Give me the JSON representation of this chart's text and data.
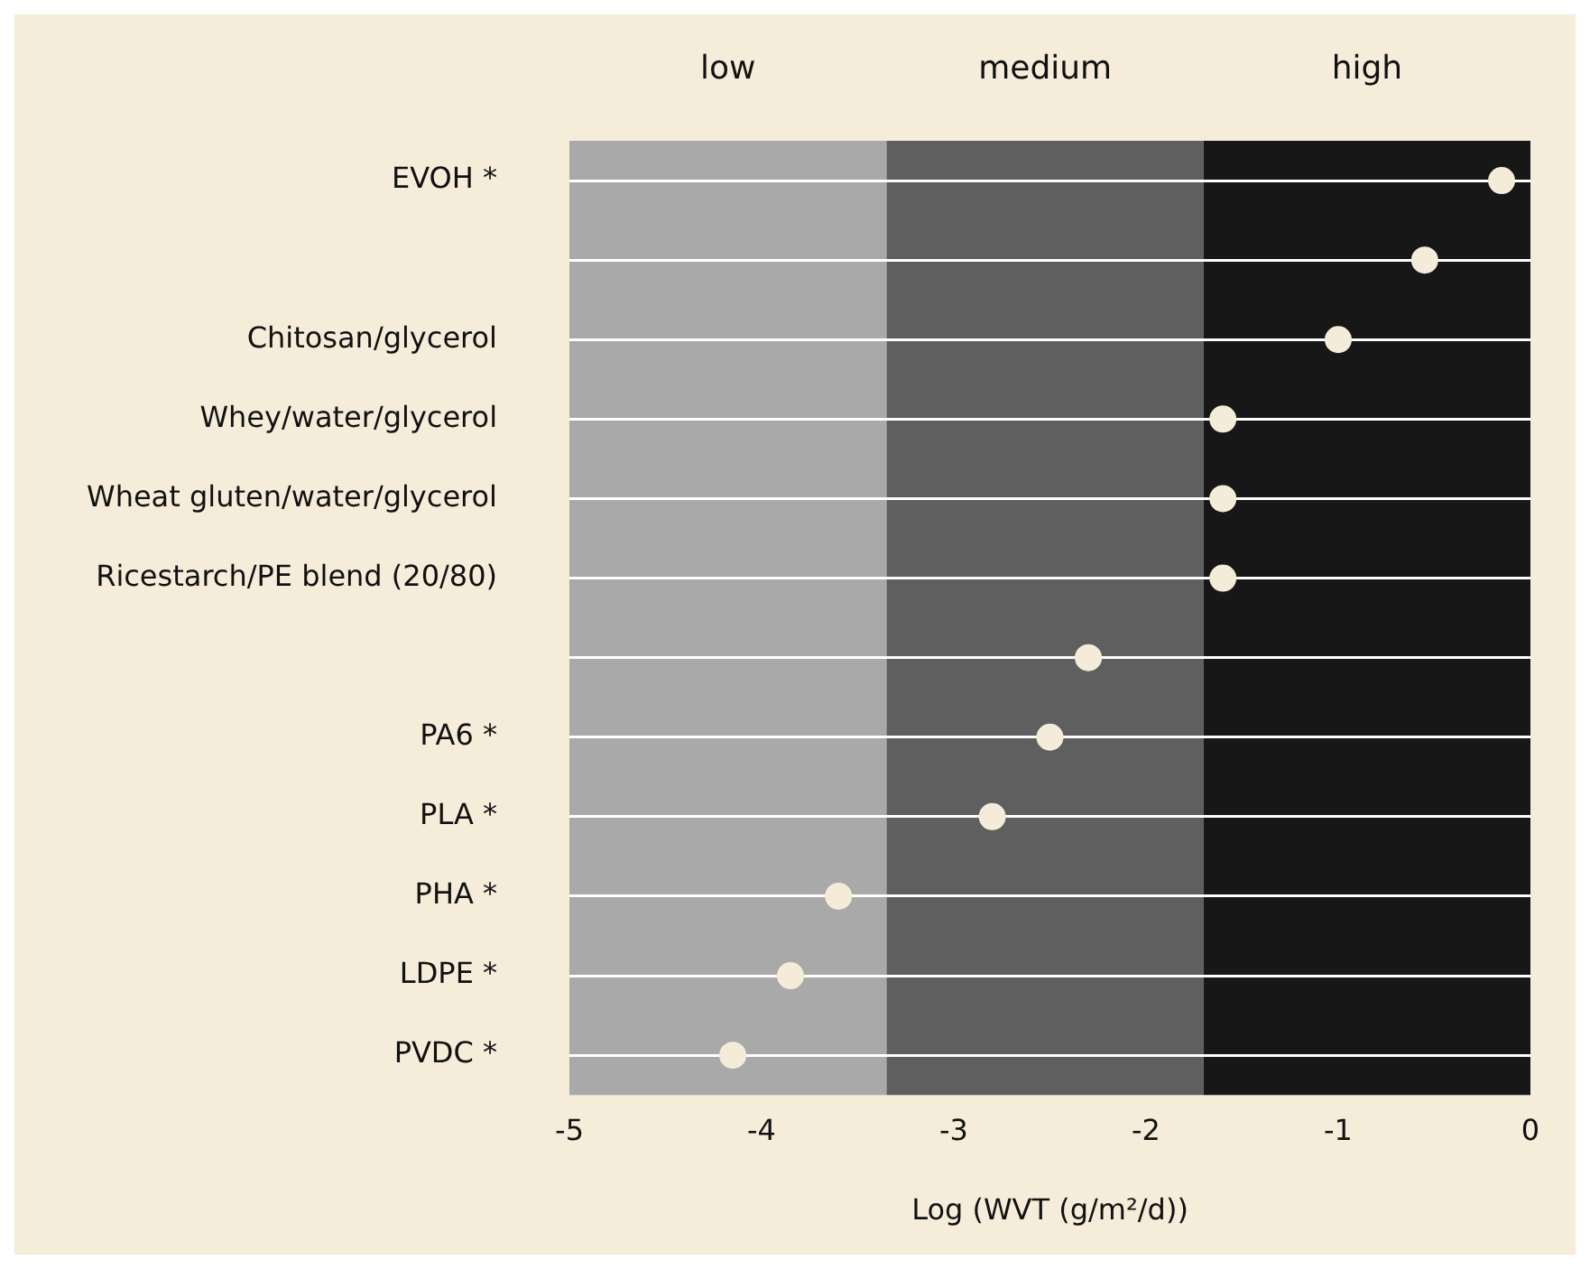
{
  "chart_data": {
    "type": "scatter",
    "orientation": "horizontal",
    "xlabel": "Log (WVT (g/m²/d))",
    "categories": [
      "EVOH *",
      null,
      "Chitosan/glycerol",
      "Whey/water/glycerol",
      "Wheat gluten/water/glycerol",
      "Ricestarch/PE blend (20/80)",
      null,
      "PA6 *",
      "PLA *",
      "PHA *",
      "LDPE *",
      "PVDC *"
    ],
    "values": [
      -0.15,
      -0.55,
      -1.0,
      -1.6,
      -1.6,
      -1.6,
      -2.3,
      -2.5,
      -2.8,
      -3.6,
      -3.85,
      -4.15
    ],
    "color": "#f4ecd8",
    "marker": "circle",
    "grid": "y",
    "xlim": [
      -5,
      0
    ],
    "xticks": [
      -5,
      -4,
      -3,
      -2,
      -1,
      0
    ],
    "bands": [
      {
        "axis": "x",
        "from": -5,
        "to": -3.35,
        "label": "low",
        "color": "#a9a9a9"
      },
      {
        "axis": "x",
        "from": -3.35,
        "to": -1.7,
        "label": "medium",
        "color": "#5f5f5f"
      },
      {
        "axis": "x",
        "from": -1.7,
        "to": 0,
        "label": "high",
        "color": "#171717"
      }
    ]
  }
}
